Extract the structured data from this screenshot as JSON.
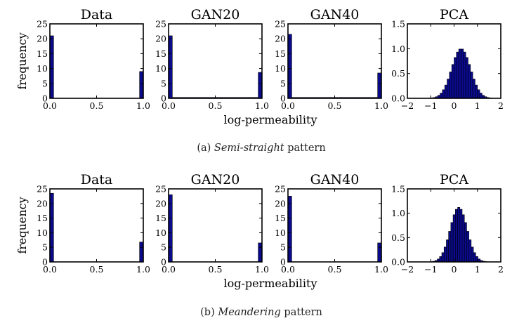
{
  "chart_data": [
    {
      "type": "bar",
      "row": "a",
      "title": "Data",
      "ylabel": "frequency",
      "xlabel": "",
      "xlim": [
        0,
        1
      ],
      "ylim": [
        0,
        25
      ],
      "xticks": [
        "0.0",
        "0.5",
        "1.0"
      ],
      "yticks": [
        "0",
        "5",
        "10",
        "15",
        "20",
        "25"
      ],
      "bins": [
        [
          0.0,
          0.04,
          21
        ],
        [
          0.96,
          1.0,
          9
        ]
      ]
    },
    {
      "type": "bar",
      "row": "a",
      "title": "GAN20",
      "xlabel": "",
      "xlim": [
        0,
        1
      ],
      "ylim": [
        0,
        25
      ],
      "xticks": [
        "0.0",
        "0.5",
        "1.0"
      ],
      "yticks": [
        "0",
        "5",
        "10",
        "15",
        "20",
        "25"
      ],
      "bins": [
        [
          0.0,
          0.04,
          21
        ],
        [
          0.04,
          0.96,
          0.3
        ],
        [
          0.96,
          1.0,
          8.7
        ]
      ]
    },
    {
      "type": "bar",
      "row": "a",
      "title": "GAN40",
      "xlabel": "log-permeability",
      "xlim": [
        0,
        1
      ],
      "ylim": [
        0,
        25
      ],
      "xticks": [
        "0.0",
        "0.5",
        "1.0"
      ],
      "yticks": [
        "0",
        "5",
        "10",
        "15",
        "20",
        "25"
      ],
      "bins": [
        [
          0.0,
          0.04,
          21.5
        ],
        [
          0.04,
          0.96,
          0.3
        ],
        [
          0.96,
          1.0,
          8.5
        ]
      ]
    },
    {
      "type": "bar",
      "row": "a",
      "title": "PCA",
      "xlabel": "",
      "xlim": [
        -2,
        2
      ],
      "ylim": [
        0,
        1.5
      ],
      "xticks": [
        "−2",
        "−1",
        "0",
        "1",
        "2"
      ],
      "yticks": [
        "0.0",
        "0.5",
        "1.0",
        "1.5"
      ],
      "normal": {
        "mean": 0.3,
        "sd": 0.4,
        "peak": 1.0,
        "range": [
          -1.4,
          1.9
        ],
        "nbins": 33
      }
    },
    {
      "type": "bar",
      "row": "b",
      "title": "Data",
      "ylabel": "frequency",
      "xlabel": "",
      "xlim": [
        0,
        1
      ],
      "ylim": [
        0,
        25
      ],
      "xticks": [
        "0.0",
        "0.5",
        "1.0"
      ],
      "yticks": [
        "0",
        "5",
        "10",
        "15",
        "20",
        "25"
      ],
      "bins": [
        [
          0.0,
          0.04,
          23.5
        ],
        [
          0.96,
          1.0,
          6.8
        ]
      ]
    },
    {
      "type": "bar",
      "row": "b",
      "title": "GAN20",
      "xlabel": "",
      "xlim": [
        0,
        1
      ],
      "ylim": [
        0,
        25
      ],
      "xticks": [
        "0.0",
        "0.5",
        "1.0"
      ],
      "yticks": [
        "0",
        "5",
        "10",
        "15",
        "20",
        "25"
      ],
      "bins": [
        [
          0.0,
          0.04,
          23
        ],
        [
          0.96,
          1.0,
          6.5
        ]
      ]
    },
    {
      "type": "bar",
      "row": "b",
      "title": "GAN40",
      "xlabel": "log-permeability",
      "xlim": [
        0,
        1
      ],
      "ylim": [
        0,
        25
      ],
      "xticks": [
        "0.0",
        "0.5",
        "1.0"
      ],
      "yticks": [
        "0",
        "5",
        "10",
        "15",
        "20",
        "25"
      ],
      "bins": [
        [
          0.0,
          0.04,
          22.5
        ],
        [
          0.96,
          1.0,
          6.5
        ]
      ]
    },
    {
      "type": "bar",
      "row": "b",
      "title": "PCA",
      "xlabel": "",
      "xlim": [
        -2,
        2
      ],
      "ylim": [
        0,
        1.5
      ],
      "xticks": [
        "−2",
        "−1",
        "0",
        "1",
        "2"
      ],
      "yticks": [
        "0.0",
        "0.5",
        "1.0",
        "1.5"
      ],
      "normal": {
        "mean": 0.2,
        "sd": 0.36,
        "peak": 1.12,
        "range": [
          -1.3,
          1.7
        ],
        "nbins": 31
      }
    }
  ],
  "captions": [
    {
      "label": "(a)",
      "italic": "Semi-straight",
      "rest": "pattern"
    },
    {
      "label": "(b)",
      "italic": "Meandering",
      "rest": "pattern"
    }
  ],
  "colors": {
    "bar_fill": "#0a0a8c",
    "bar_edge": "#000000",
    "axis": "#000000"
  }
}
